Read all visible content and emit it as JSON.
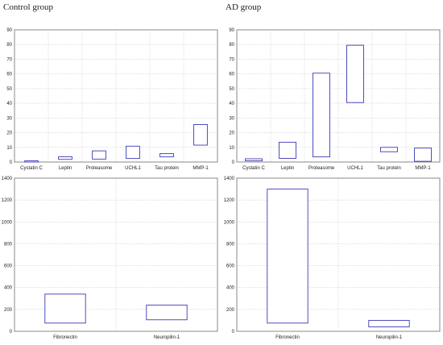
{
  "headings": {
    "control": "Control group",
    "ad": "AD group"
  },
  "colors": {
    "box_stroke": "#3a3ab8",
    "frame": "#8a8a8a",
    "grid": "#c4c4c4",
    "background": "#ffffff"
  },
  "chart_data": [
    {
      "id": "control-top",
      "type": "box",
      "group": "Control group",
      "categories": [
        "Cystatin C",
        "Leptin",
        "Proteasome",
        "UCHL1",
        "Tau protein",
        "MMP-1"
      ],
      "ranges": [
        [
          0.0,
          0.8
        ],
        [
          1.8,
          3.6
        ],
        [
          2.0,
          7.6
        ],
        [
          2.4,
          10.8
        ],
        [
          3.5,
          5.7
        ],
        [
          11.5,
          25.5
        ]
      ],
      "ylim": [
        0,
        90
      ],
      "yticks": [
        0,
        10,
        20,
        30,
        40,
        50,
        60,
        70,
        80,
        90
      ],
      "grid": true,
      "title": "",
      "xlabel": "",
      "ylabel": ""
    },
    {
      "id": "ad-top",
      "type": "box",
      "group": "AD group",
      "categories": [
        "Cystatin C",
        "Leptin",
        "Proteasome",
        "UCHL1",
        "Tau protein",
        "MMP-1"
      ],
      "ranges": [
        [
          0.8,
          2.2
        ],
        [
          2.5,
          13.5
        ],
        [
          3.5,
          60.5
        ],
        [
          40.5,
          79.5
        ],
        [
          7.0,
          10.0
        ],
        [
          0.5,
          9.5
        ]
      ],
      "ylim": [
        0,
        90
      ],
      "yticks": [
        0,
        10,
        20,
        30,
        40,
        50,
        60,
        70,
        80,
        90
      ],
      "grid": true,
      "title": "",
      "xlabel": "",
      "ylabel": ""
    },
    {
      "id": "control-bottom",
      "type": "box",
      "group": "Control group",
      "categories": [
        "Fibronectin",
        "Neuropilin-1"
      ],
      "ranges": [
        [
          75,
          340
        ],
        [
          105,
          240
        ]
      ],
      "ylim": [
        0,
        1400
      ],
      "yticks": [
        0,
        200,
        400,
        600,
        800,
        1000,
        1200,
        1400
      ],
      "grid": true,
      "title": "",
      "xlabel": "",
      "ylabel": ""
    },
    {
      "id": "ad-bottom",
      "type": "box",
      "group": "AD group",
      "categories": [
        "Fibronectin",
        "Neuropilin-1"
      ],
      "ranges": [
        [
          75,
          1300
        ],
        [
          40,
          100
        ]
      ],
      "ylim": [
        0,
        1400
      ],
      "yticks": [
        0,
        200,
        400,
        600,
        800,
        1000,
        1200,
        1400
      ],
      "grid": true,
      "title": "",
      "xlabel": "",
      "ylabel": ""
    }
  ]
}
